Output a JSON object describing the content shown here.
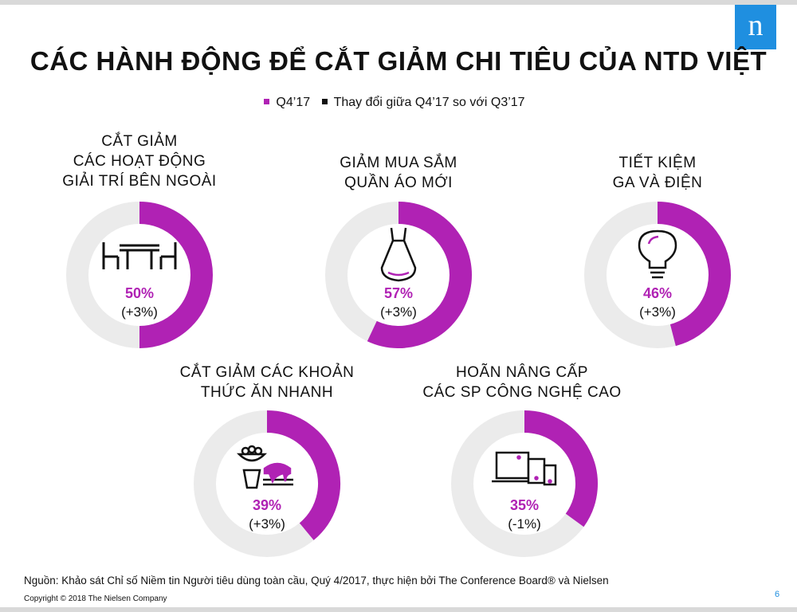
{
  "title": "CÁC HÀNH ĐỘNG ĐỂ CẮT GIẢM CHI TIÊU CỦA NTD VIỆT",
  "logo_text": "n",
  "legend": [
    {
      "label": "Q4’17",
      "color": "#b022b4"
    },
    {
      "label": "Thay đổi giữa Q4’17 so với Q3’17",
      "color": "#111111"
    }
  ],
  "chart_data": {
    "type": "pie",
    "subtype": "donut",
    "series": [
      {
        "name": "Q4’17",
        "values": [
          50,
          57,
          46,
          39,
          35
        ]
      },
      {
        "name": "Thay đổi giữa Q4’17 so với Q3’17",
        "values": [
          3,
          3,
          3,
          3,
          -1
        ]
      }
    ],
    "items": [
      {
        "label_lines": [
          "CẮT GIẢM",
          "CÁC HOẠT ĐỘNG",
          "GIẢI TRÍ BÊN NGOÀI"
        ],
        "value": 50,
        "value_label": "50%",
        "change_label": "(+3%)",
        "icon": "table-chairs-icon"
      },
      {
        "label_lines": [
          "GIẢM MUA SẮM",
          "QUẦN ÁO MỚI"
        ],
        "value": 57,
        "value_label": "57%",
        "change_label": "(+3%)",
        "icon": "dress-icon"
      },
      {
        "label_lines": [
          "TIẾT KIỆM",
          "GA VÀ ĐIỆN"
        ],
        "value": 46,
        "value_label": "46%",
        "change_label": "(+3%)",
        "icon": "light-bulb-icon"
      },
      {
        "label_lines": [
          "CẮT GIẢM CÁC KHOẢN",
          "THỨC ĂN NHANH"
        ],
        "value": 39,
        "value_label": "39%",
        "change_label": "(+3%)",
        "icon": "fast-food-icon"
      },
      {
        "label_lines": [
          "HOÃN NÂNG CẤP",
          "CÁC SP CÔNG NGHỆ CAO"
        ],
        "value": 35,
        "value_label": "35%",
        "change_label": "(-1%)",
        "icon": "devices-icon"
      }
    ],
    "colors": {
      "fill": "#b022b4",
      "track": "#ebebeb"
    }
  },
  "source": "Nguồn: Khảo sát Chỉ số Niềm tin Người tiêu dùng toàn cầu, Quý 4/2017, thực hiện bởi The Conference Board® và Nielsen",
  "copyright": "Copyright © 2018 The Nielsen Company",
  "page_number": "6"
}
